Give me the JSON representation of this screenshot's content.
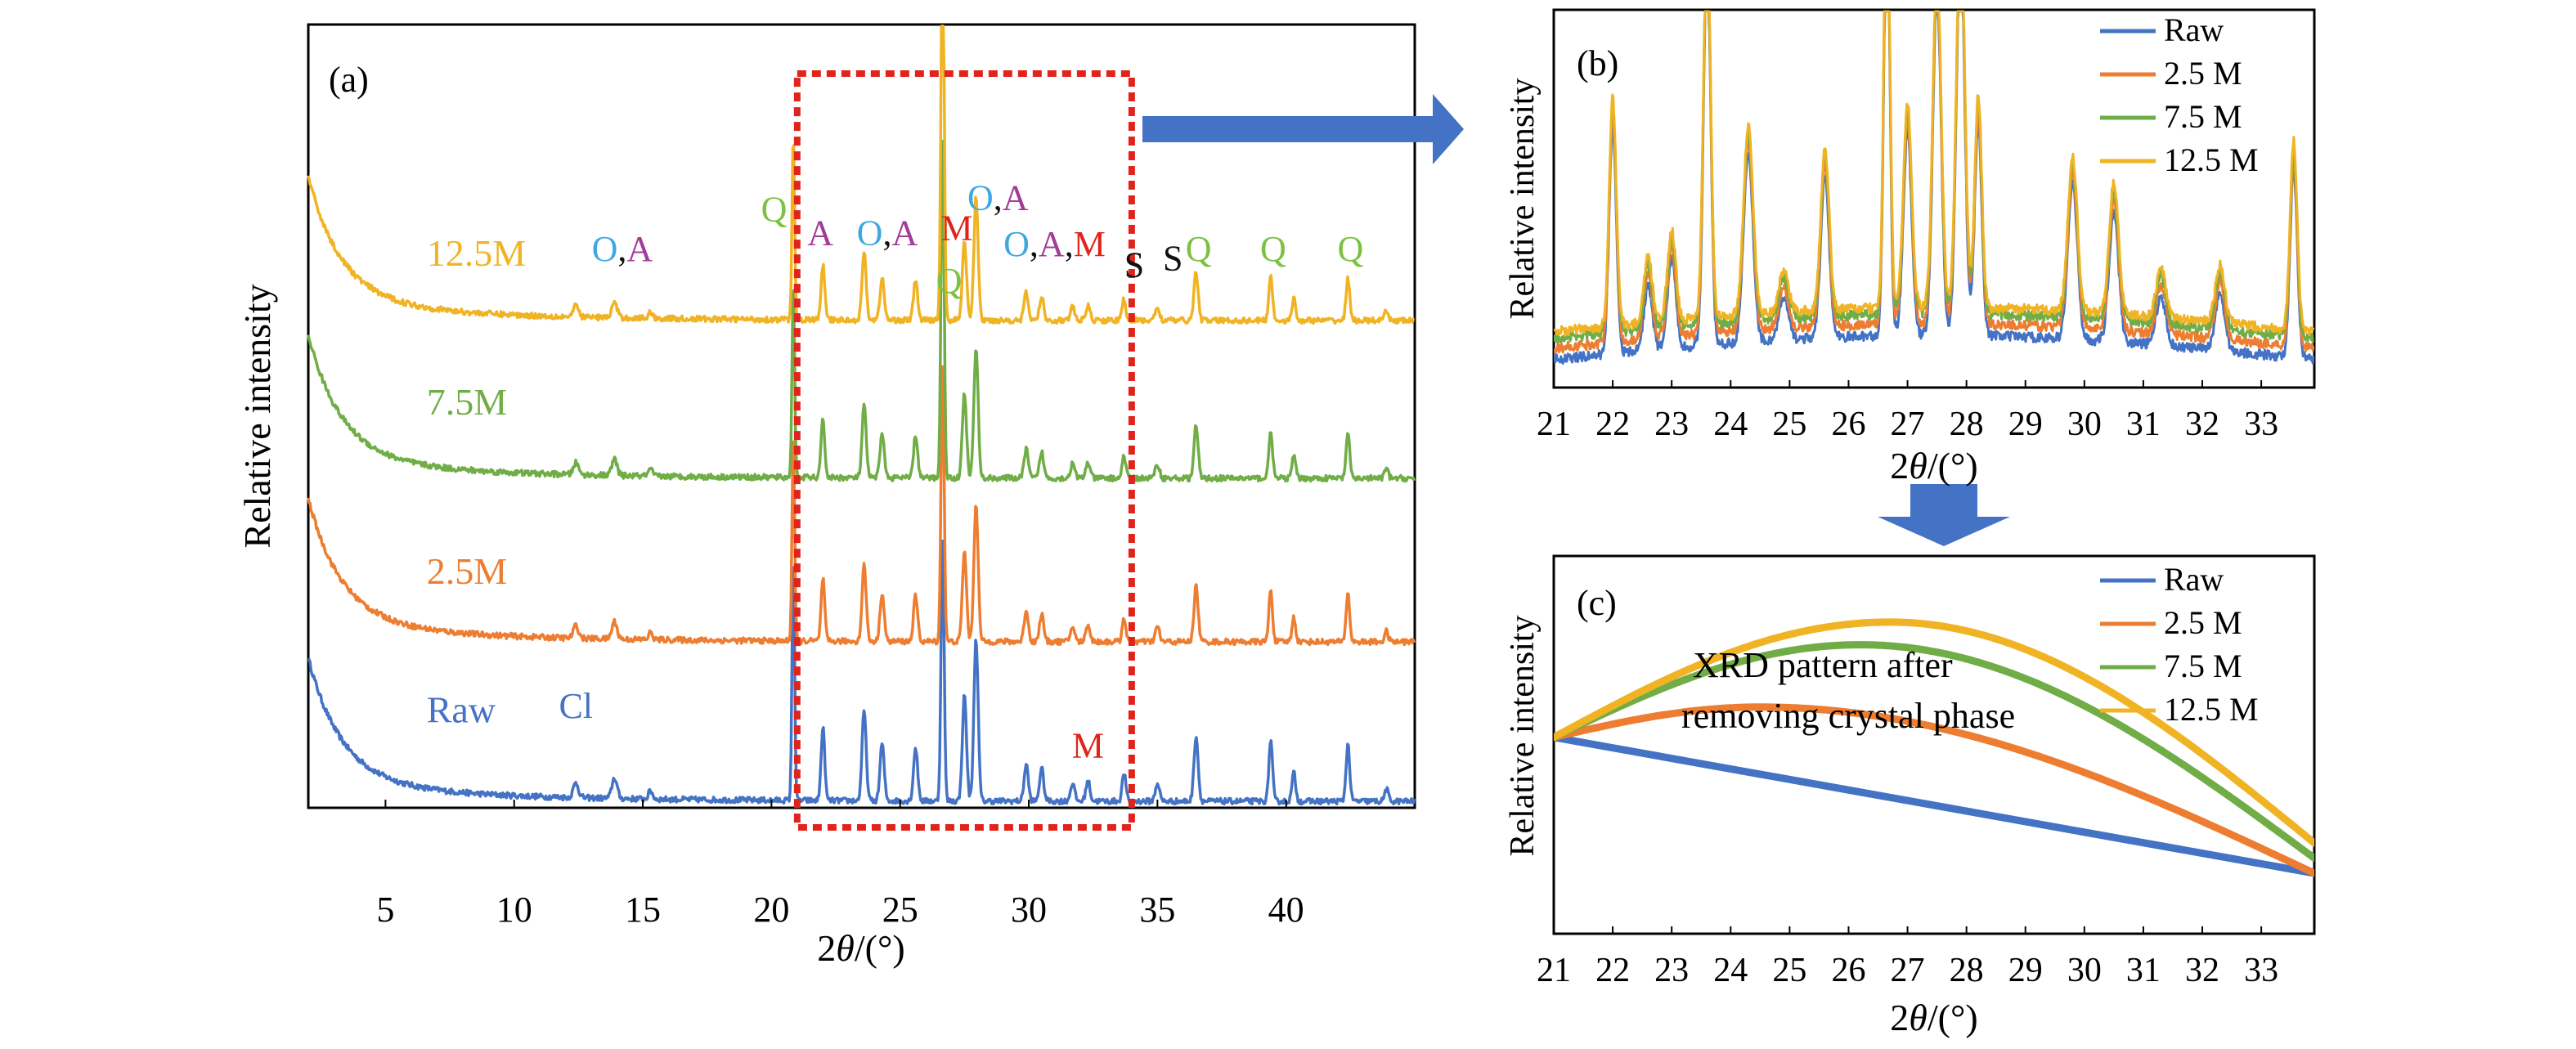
{
  "colors": {
    "raw": "#4472C4",
    "m25": "#ED7D31",
    "m75": "#70AD47",
    "m125": "#F0B323",
    "q": "#7CC142",
    "o": "#3FA9DF",
    "a": "#A23B9A",
    "m": "#E0241B",
    "s": "#111111",
    "cl": "#4472C4",
    "box": "#E0241B",
    "arrow": "#4472C4"
  },
  "chart_data": [
    {
      "id": "a",
      "type": "line",
      "panel_label": "(a)",
      "xlabel_pre": "2",
      "xlabel_theta": "θ",
      "xlabel_post": "/(°)",
      "ylabel": "Relative intensity",
      "xlim": [
        2,
        45
      ],
      "xticks": [
        5,
        10,
        15,
        20,
        25,
        30,
        35,
        40
      ],
      "highlight_box_x": [
        21,
        34
      ],
      "series": [
        {
          "name": "Raw",
          "key": "raw",
          "offset": 0
        },
        {
          "name": "2.5M",
          "key": "m25",
          "offset": 1
        },
        {
          "name": "7.5M",
          "key": "m75",
          "offset": 2
        },
        {
          "name": "12.5M",
          "key": "m125",
          "offset": 3
        }
      ],
      "peak_labels": [
        {
          "parts": [
            {
              "t": "Q",
              "c": "q"
            }
          ],
          "x": 20.1,
          "tier": 3.65
        },
        {
          "parts": [
            {
              "t": "O",
              "c": "o"
            },
            {
              "t": ",",
              "c": "s"
            },
            {
              "t": "A",
              "c": "a"
            }
          ],
          "x": 14.2,
          "tier": 3.4
        },
        {
          "parts": [
            {
              "t": "A",
              "c": "a"
            }
          ],
          "x": 21.9,
          "tier": 3.5
        },
        {
          "parts": [
            {
              "t": "O",
              "c": "o"
            },
            {
              "t": ",",
              "c": "s"
            },
            {
              "t": "A",
              "c": "a"
            }
          ],
          "x": 24.5,
          "tier": 3.5
        },
        {
          "parts": [
            {
              "t": "M",
              "c": "m"
            }
          ],
          "x": 27.2,
          "tier": 3.53
        },
        {
          "parts": [
            {
              "t": "Q",
              "c": "q"
            }
          ],
          "x": 26.9,
          "tier": 4.2
        },
        {
          "parts": [
            {
              "t": "O",
              "c": "o"
            },
            {
              "t": ",",
              "c": "s"
            },
            {
              "t": "A",
              "c": "a"
            }
          ],
          "x": 28.8,
          "tier": 3.72
        },
        {
          "parts": [
            {
              "t": "O",
              "c": "o"
            },
            {
              "t": ",",
              "c": "s"
            },
            {
              "t": "A",
              "c": "a"
            },
            {
              "t": ",",
              "c": "s"
            },
            {
              "t": "M",
              "c": "m"
            }
          ],
          "x": 31.0,
          "tier": 3.43
        },
        {
          "parts": [
            {
              "t": "S",
              "c": "s"
            }
          ],
          "x": 34.1,
          "tier": 3.3
        },
        {
          "parts": [
            {
              "t": "S",
              "c": "s"
            }
          ],
          "x": 35.6,
          "tier": 3.34
        },
        {
          "parts": [
            {
              "t": "Q",
              "c": "q"
            }
          ],
          "x": 36.6,
          "tier": 3.4
        },
        {
          "parts": [
            {
              "t": "Q",
              "c": "q"
            }
          ],
          "x": 39.5,
          "tier": 3.4
        },
        {
          "parts": [
            {
              "t": "Q",
              "c": "q"
            }
          ],
          "x": 42.5,
          "tier": 3.4
        },
        {
          "parts": [
            {
              "t": "Cl",
              "c": "cl"
            }
          ],
          "x": 12.4,
          "tier": 0.55
        },
        {
          "parts": [
            {
              "t": "M",
              "c": "m"
            }
          ],
          "x": 32.3,
          "tier": 0.3
        }
      ],
      "series_labels": [
        {
          "text": "12.5M",
          "key": "m125",
          "x": 6.6,
          "tier": 3.37
        },
        {
          "text": "7.5M",
          "key": "m75",
          "x": 6.6,
          "tier": 2.43
        },
        {
          "text": "2.5M",
          "key": "m25",
          "x": 6.6,
          "tier": 1.38
        },
        {
          "text": "Raw",
          "key": "raw",
          "x": 6.6,
          "tier": 0.52
        }
      ]
    },
    {
      "id": "b",
      "type": "line",
      "panel_label": "(b)",
      "xlabel_pre": "2",
      "xlabel_theta": "θ",
      "xlabel_post": "/(°)",
      "ylabel": "Relative intensity",
      "xlim": [
        21,
        33.9
      ],
      "xticks": [
        21,
        22,
        23,
        24,
        25,
        26,
        27,
        28,
        29,
        30,
        31,
        32,
        33
      ],
      "legend": "top-right",
      "series": [
        {
          "name": "Raw",
          "key": "raw"
        },
        {
          "name": "2.5 M",
          "key": "m25"
        },
        {
          "name": "7.5 M",
          "key": "m75"
        },
        {
          "name": "12.5 M",
          "key": "m125"
        }
      ]
    },
    {
      "id": "c",
      "type": "line",
      "panel_label": "(c)",
      "xlabel_pre": "2",
      "xlabel_theta": "θ",
      "xlabel_post": "/(°)",
      "ylabel": "Relative intensity",
      "annotation": [
        "XRD pattern after",
        "removing crystal phase"
      ],
      "xlim": [
        21,
        33.9
      ],
      "xticks": [
        21,
        22,
        23,
        24,
        25,
        26,
        27,
        28,
        29,
        30,
        31,
        32,
        33
      ],
      "legend": "top-right",
      "ylim": [
        0,
        1
      ],
      "series": [
        {
          "name": "Raw",
          "key": "raw",
          "x": [
            21,
            33.9
          ],
          "y": [
            0.52,
            0.16
          ]
        },
        {
          "name": "2.5 M",
          "key": "m25",
          "x": [
            21,
            24.5,
            33.9
          ],
          "y": [
            0.52,
            0.6,
            0.16
          ]
        },
        {
          "name": "7.5 M",
          "key": "m75",
          "x": [
            21,
            26.2,
            33.9
          ],
          "y": [
            0.52,
            0.765,
            0.2
          ]
        },
        {
          "name": "12.5 M",
          "key": "m125",
          "x": [
            21,
            26.7,
            33.9
          ],
          "y": [
            0.52,
            0.825,
            0.24
          ]
        }
      ]
    }
  ]
}
